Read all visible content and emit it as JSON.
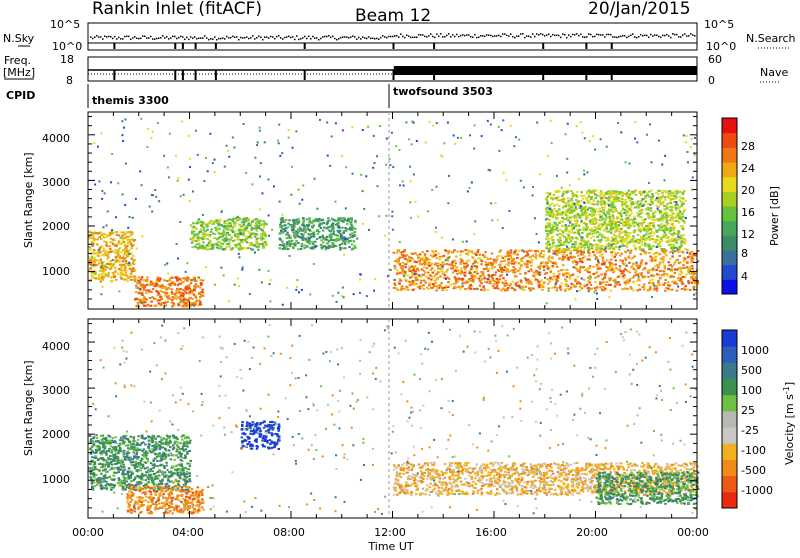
{
  "header": {
    "site": "Rankin Inlet (fitACF)",
    "beam": "Beam 12",
    "date": "20/Jan/2015"
  },
  "top_panels": {
    "nsky_label": "N.Sky",
    "nsky_ticks": [
      "10^5",
      "10^0"
    ],
    "nsearch_label": "N.Search",
    "nsearch_ticks": [
      "10^5",
      "10^0"
    ],
    "freq_label_1": "Freq.",
    "freq_label_2": "[MHz]",
    "freq_ticks": [
      "18",
      "8"
    ],
    "nave_label": "Nave",
    "nave_ticks": [
      "60",
      "0"
    ],
    "cpid_label": "CPID",
    "cpid_1": "themis 3300",
    "cpid_2": "twofsound 3503"
  },
  "axes": {
    "ylabel": "Slant Range [km]",
    "xlabel": "Time UT",
    "yticks": [
      "1000",
      "2000",
      "3000",
      "4000"
    ],
    "xticks": [
      "00:00",
      "04:00",
      "08:00",
      "12:00",
      "16:00",
      "20:00",
      "00:00"
    ]
  },
  "colorbars": {
    "power": {
      "title": "Power [dB]",
      "ticks": [
        "4",
        "8",
        "12",
        "16",
        "20",
        "24",
        "28"
      ],
      "colors": [
        "#0a10e6",
        "#1f4bd0",
        "#3a6f9e",
        "#3c8c68",
        "#48a85a",
        "#64c23c",
        "#a8d020",
        "#e8d81e",
        "#f0a816",
        "#f07814",
        "#ee4a12",
        "#e81010"
      ]
    },
    "velocity": {
      "title": "Velocity [m s",
      "title_sup": "-1",
      "title_end": "]",
      "ticks": [
        "1000",
        "500",
        "100",
        "25",
        "-25",
        "-100",
        "-500",
        "-1000"
      ],
      "colors": [
        "#1a3ad8",
        "#2f5fb8",
        "#3a7a8a",
        "#3c9050",
        "#6cc240",
        "#b8b8b4",
        "#c8c8c4",
        "#f0b020",
        "#f08a18",
        "#ee5a14",
        "#e82a10"
      ]
    }
  },
  "chart_data": [
    {
      "type": "heatmap",
      "title": "Power [dB]",
      "xlabel": "Time UT",
      "ylabel": "Slant Range [km]",
      "xlim": [
        0,
        24
      ],
      "ylim": [
        180,
        4500
      ],
      "colorbar_range": [
        3,
        30
      ],
      "regions": [
        {
          "t": [
            0,
            1.8
          ],
          "r": [
            800,
            1900
          ],
          "v": 22
        },
        {
          "t": [
            1.8,
            4.5
          ],
          "r": [
            250,
            900
          ],
          "v": 25
        },
        {
          "t": [
            4.0,
            7.0
          ],
          "r": [
            1500,
            2200
          ],
          "v": 16
        },
        {
          "t": [
            7.5,
            10.5
          ],
          "r": [
            1500,
            2200
          ],
          "v": 12
        },
        {
          "t": [
            12.0,
            24.0
          ],
          "r": [
            600,
            1500
          ],
          "v": 24
        },
        {
          "t": [
            18.0,
            23.5
          ],
          "r": [
            1500,
            2800
          ],
          "v": 18
        }
      ]
    },
    {
      "type": "heatmap",
      "title": "Velocity [m s-1]",
      "xlabel": "Time UT",
      "ylabel": "Slant Range [km]",
      "xlim": [
        0,
        24
      ],
      "ylim": [
        180,
        4500
      ],
      "colorbar_ticks": [
        1000,
        500,
        100,
        25,
        -25,
        -100,
        -500,
        -1000
      ],
      "regions": [
        {
          "t": [
            0,
            4.0
          ],
          "r": [
            800,
            2000
          ],
          "v": 200
        },
        {
          "t": [
            1.5,
            4.5
          ],
          "r": [
            300,
            900
          ],
          "v": -300
        },
        {
          "t": [
            6.0,
            7.5
          ],
          "r": [
            1700,
            2300
          ],
          "v": 800
        },
        {
          "t": [
            12.0,
            24.0
          ],
          "r": [
            700,
            1400
          ],
          "v": -150
        },
        {
          "t": [
            20.0,
            24.0
          ],
          "r": [
            500,
            1200
          ],
          "v": 150
        }
      ]
    }
  ]
}
